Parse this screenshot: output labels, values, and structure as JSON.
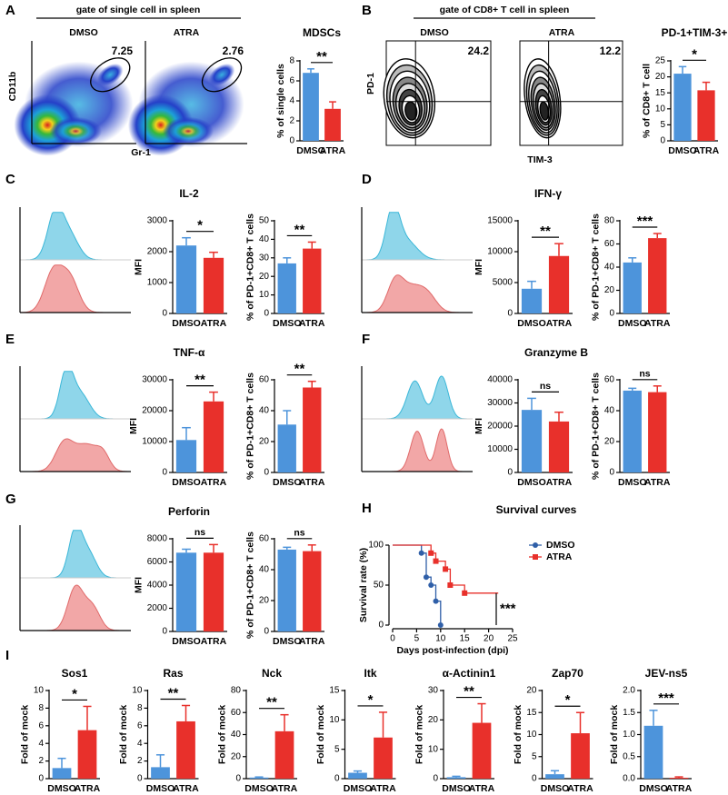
{
  "figure": {
    "panels": [
      "A",
      "B",
      "C",
      "D",
      "E",
      "F",
      "G",
      "H",
      "I"
    ],
    "flow_A": {
      "gate": "gate of single cell in spleen",
      "groups": [
        "DMSO",
        "ATRA"
      ],
      "gate_percent": [
        7.25,
        2.76
      ],
      "x_label": "Gr-1",
      "y_label": "CD11b"
    },
    "flow_B": {
      "gate": "gate of CD8+ T cell in spleen",
      "groups": [
        "DMSO",
        "ATRA"
      ],
      "gate_percent": [
        24.2,
        12.2
      ],
      "x_label": "TIM-3",
      "y_label": "PD-1"
    },
    "histogram_titles": [
      "IL-2",
      "IFN-γ",
      "TNF-α",
      "Granzyme B",
      "Perforin"
    ]
  },
  "chart_data": [
    {
      "type": "bar",
      "title": "MDSCs",
      "categories": [
        "DMSO",
        "ATRA"
      ],
      "values": [
        6.8,
        3.2
      ],
      "errors": [
        0.4,
        0.7
      ],
      "colors": [
        "#4d94db",
        "#e8302b"
      ],
      "ylabel": "% of single cells",
      "ylim": [
        0,
        8
      ],
      "yticks": [
        0,
        2,
        4,
        6,
        8
      ],
      "significance": "**"
    },
    {
      "type": "bar",
      "title": "PD-1+TIM-3+",
      "categories": [
        "DMSO",
        "ATRA"
      ],
      "values": [
        21,
        15.8
      ],
      "errors": [
        2.2,
        2.5
      ],
      "colors": [
        "#4d94db",
        "#e8302b"
      ],
      "ylabel": "% of CD8+ T cell",
      "ylim": [
        0,
        25
      ],
      "yticks": [
        0,
        5,
        10,
        15,
        20,
        25
      ],
      "significance": "*"
    },
    {
      "type": "bar",
      "categories": [
        "DMSO",
        "ATRA"
      ],
      "values": [
        2200,
        1800
      ],
      "errors": [
        250,
        180
      ],
      "colors": [
        "#4d94db",
        "#e8302b"
      ],
      "ylabel": "MFI",
      "ylim": [
        0,
        3000
      ],
      "yticks": [
        0,
        1000,
        2000,
        3000
      ],
      "significance": "*"
    },
    {
      "type": "bar",
      "categories": [
        "DMSO",
        "ATRA"
      ],
      "values": [
        27,
        35
      ],
      "errors": [
        3,
        3.5
      ],
      "colors": [
        "#4d94db",
        "#e8302b"
      ],
      "ylabel": "% of PD-1+CD8+ T cells",
      "ylim": [
        0,
        50
      ],
      "yticks": [
        0,
        10,
        20,
        30,
        40,
        50
      ],
      "significance": "**"
    },
    {
      "type": "bar",
      "categories": [
        "DMSO",
        "ATRA"
      ],
      "values": [
        4000,
        9300
      ],
      "errors": [
        1200,
        2000
      ],
      "colors": [
        "#4d94db",
        "#e8302b"
      ],
      "ylabel": "MFI",
      "ylim": [
        0,
        15000
      ],
      "yticks": [
        0,
        5000,
        10000,
        15000
      ],
      "significance": "**"
    },
    {
      "type": "bar",
      "categories": [
        "DMSO",
        "ATRA"
      ],
      "values": [
        44,
        65
      ],
      "errors": [
        4,
        4
      ],
      "colors": [
        "#4d94db",
        "#e8302b"
      ],
      "ylabel": "% of PD-1+CD8+ T cells",
      "ylim": [
        0,
        80
      ],
      "yticks": [
        0,
        20,
        40,
        60,
        80
      ],
      "significance": "***"
    },
    {
      "type": "bar",
      "categories": [
        "DMSO",
        "ATRA"
      ],
      "values": [
        10500,
        23000
      ],
      "errors": [
        4000,
        3000
      ],
      "colors": [
        "#4d94db",
        "#e8302b"
      ],
      "ylabel": "MFI",
      "ylim": [
        0,
        30000
      ],
      "yticks": [
        0,
        10000,
        20000,
        30000
      ],
      "significance": "**"
    },
    {
      "type": "bar",
      "categories": [
        "DMSO",
        "ATRA"
      ],
      "values": [
        31,
        55
      ],
      "errors": [
        9,
        4
      ],
      "colors": [
        "#4d94db",
        "#e8302b"
      ],
      "ylabel": "% of PD-1+CD8+ T cells",
      "ylim": [
        0,
        60
      ],
      "yticks": [
        0,
        20,
        40,
        60
      ],
      "significance": "**"
    },
    {
      "type": "bar",
      "categories": [
        "DMSO",
        "ATRA"
      ],
      "values": [
        27000,
        22000
      ],
      "errors": [
        5000,
        4000
      ],
      "colors": [
        "#4d94db",
        "#e8302b"
      ],
      "ylabel": "MFI",
      "ylim": [
        0,
        40000
      ],
      "yticks": [
        0,
        10000,
        20000,
        30000,
        40000
      ],
      "significance": "ns"
    },
    {
      "type": "bar",
      "categories": [
        "DMSO",
        "ATRA"
      ],
      "values": [
        53,
        52
      ],
      "errors": [
        1.5,
        4
      ],
      "colors": [
        "#4d94db",
        "#e8302b"
      ],
      "ylabel": "% of PD-1+CD8+ T cells",
      "ylim": [
        0,
        60
      ],
      "yticks": [
        0,
        20,
        40,
        60
      ],
      "significance": "ns"
    },
    {
      "type": "bar",
      "categories": [
        "DMSO",
        "ATRA"
      ],
      "values": [
        6800,
        6800
      ],
      "errors": [
        300,
        700
      ],
      "colors": [
        "#4d94db",
        "#e8302b"
      ],
      "ylabel": "MFI",
      "ylim": [
        0,
        8000
      ],
      "yticks": [
        0,
        2000,
        4000,
        6000,
        8000
      ],
      "significance": "ns"
    },
    {
      "type": "bar",
      "categories": [
        "DMSO",
        "ATRA"
      ],
      "values": [
        53,
        52
      ],
      "errors": [
        1.5,
        4
      ],
      "colors": [
        "#4d94db",
        "#e8302b"
      ],
      "ylabel": "% of PD-1+CD8+ T cells",
      "ylim": [
        0,
        60
      ],
      "yticks": [
        0,
        20,
        40,
        60
      ],
      "significance": "ns"
    },
    {
      "type": "line",
      "title": "Survival curves",
      "xlabel": "Days post-infection (dpi)",
      "ylabel": "Survival rate (%)",
      "xlim": [
        0,
        25
      ],
      "xticks": [
        0,
        5,
        10,
        15,
        20,
        25
      ],
      "ylim": [
        0,
        100
      ],
      "yticks": [
        0,
        50,
        100
      ],
      "series": [
        {
          "name": "DMSO",
          "color": "#2f5fa8",
          "marker": "circle",
          "x": [
            0,
            6,
            6,
            7,
            7,
            8,
            8,
            9,
            9,
            10,
            10
          ],
          "values": [
            100,
            100,
            90,
            90,
            60,
            60,
            50,
            50,
            30,
            30,
            0
          ]
        },
        {
          "name": "ATRA",
          "color": "#e8302b",
          "marker": "square",
          "x": [
            0,
            8,
            8,
            9,
            9,
            11,
            11,
            12,
            12,
            15,
            15,
            20,
            22
          ],
          "values": [
            100,
            100,
            90,
            90,
            80,
            80,
            70,
            70,
            50,
            50,
            40,
            40,
            40
          ]
        }
      ],
      "annotation": "***"
    },
    {
      "type": "bar",
      "title": "Sos1",
      "categories": [
        "DMSO",
        "ATRA"
      ],
      "values": [
        1.2,
        5.5
      ],
      "errors": [
        1.1,
        2.7
      ],
      "colors": [
        "#4d94db",
        "#e8302b"
      ],
      "ylabel": "Fold of mock",
      "ylim": [
        0,
        10
      ],
      "yticks": [
        0,
        2,
        4,
        6,
        8,
        10
      ],
      "significance": "*"
    },
    {
      "type": "bar",
      "title": "Ras",
      "categories": [
        "DMSO",
        "ATRA"
      ],
      "values": [
        1.3,
        6.5
      ],
      "errors": [
        1.4,
        1.8
      ],
      "colors": [
        "#4d94db",
        "#e8302b"
      ],
      "ylabel": "Fold of mock",
      "ylim": [
        0,
        10
      ],
      "yticks": [
        0,
        2,
        4,
        6,
        8,
        10
      ],
      "significance": "**"
    },
    {
      "type": "bar",
      "title": "Nck",
      "categories": [
        "DMSO",
        "ATRA"
      ],
      "values": [
        1,
        43
      ],
      "errors": [
        0.5,
        15
      ],
      "colors": [
        "#4d94db",
        "#e8302b"
      ],
      "ylabel": "Fold of mock",
      "ylim": [
        0,
        80
      ],
      "yticks": [
        0,
        20,
        40,
        60,
        80
      ],
      "significance": "**"
    },
    {
      "type": "bar",
      "title": "Itk",
      "categories": [
        "DMSO",
        "ATRA"
      ],
      "values": [
        1,
        7
      ],
      "errors": [
        0.3,
        4.3
      ],
      "colors": [
        "#4d94db",
        "#e8302b"
      ],
      "ylabel": "Fold of mock",
      "ylim": [
        0,
        15
      ],
      "yticks": [
        0,
        5,
        10,
        15
      ],
      "significance": "*"
    },
    {
      "type": "bar",
      "title": "α-Actinin1",
      "categories": [
        "DMSO",
        "ATRA"
      ],
      "values": [
        0.5,
        19
      ],
      "errors": [
        0.3,
        6.5
      ],
      "colors": [
        "#4d94db",
        "#e8302b"
      ],
      "ylabel": "Fold of mock",
      "ylim": [
        0,
        30
      ],
      "yticks": [
        0,
        10,
        20,
        30
      ],
      "significance": "**"
    },
    {
      "type": "bar",
      "title": "Zap70",
      "categories": [
        "DMSO",
        "ATRA"
      ],
      "values": [
        1,
        10.3
      ],
      "errors": [
        0.8,
        4.7
      ],
      "colors": [
        "#4d94db",
        "#e8302b"
      ],
      "ylabel": "Fold of mock",
      "ylim": [
        0,
        20
      ],
      "yticks": [
        0,
        5,
        10,
        15,
        20
      ],
      "significance": "*"
    },
    {
      "type": "bar",
      "title": "JEV-ns5",
      "categories": [
        "DMSO",
        "ATRA"
      ],
      "values": [
        1.2,
        0.02
      ],
      "errors": [
        0.35,
        0.02
      ],
      "colors": [
        "#4d94db",
        "#e8302b"
      ],
      "ylabel": "Fold of mock",
      "ylim": [
        0,
        2
      ],
      "yticks": [
        {
          "value": 0,
          "label": "0.0"
        },
        0.5,
        {
          "value": 1,
          "label": "1.0"
        },
        1.5,
        {
          "value": 2,
          "label": "2.0"
        }
      ],
      "significance": "***"
    }
  ]
}
